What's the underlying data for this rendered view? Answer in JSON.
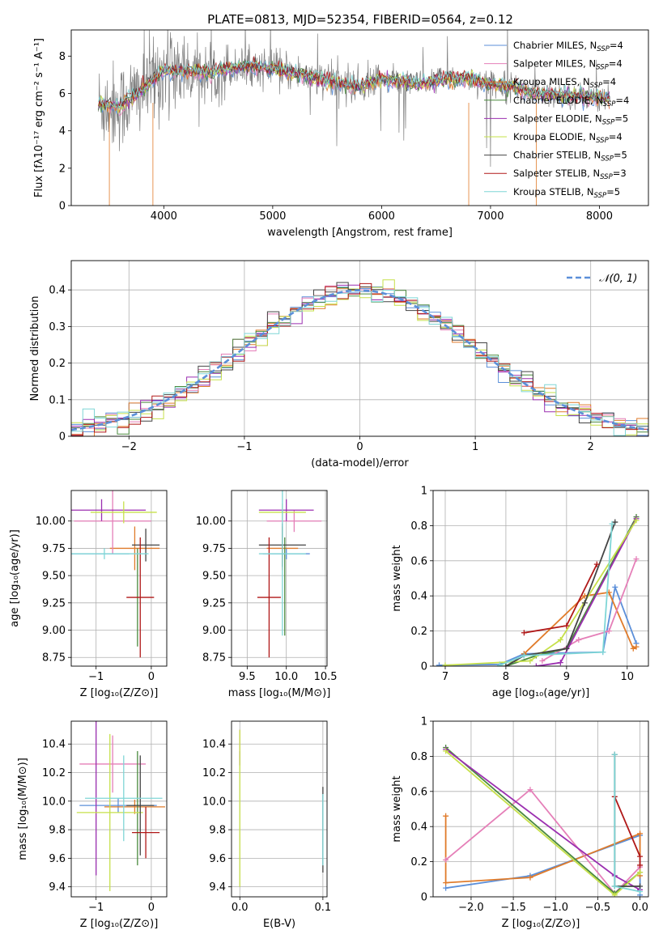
{
  "figure_title": "PLATE=0813, MJD=52354, FIBERID=0564, z=0.12",
  "colors": {
    "cornflower": "#5b8fd9",
    "orange": "#e07b2a",
    "pink": "#e57fb8",
    "green": "#4a8a3e",
    "purple": "#9b2fb0",
    "lime": "#c6e04a",
    "darkgray": "#444444",
    "red": "#b01818",
    "cyan": "#7fd6d6",
    "gray": "#808080",
    "grid": "#b0b0b0"
  },
  "chart_data": [
    {
      "id": "spectrum",
      "type": "line",
      "xlabel": "wavelength [Angstrom, rest frame]",
      "ylabel": "Flux [fλ10⁻¹⁷ erg cm⁻² s⁻¹ A⁻¹]",
      "xlim": [
        3150,
        8450
      ],
      "ylim": [
        0,
        9.4
      ],
      "xticks": [
        4000,
        5000,
        6000,
        7000,
        8000
      ],
      "yticks": [
        0,
        2,
        4,
        6,
        8
      ],
      "grid": false,
      "legend_position": "top-right",
      "series": [
        {
          "name": "Chabrier MILES, N_SSP=4",
          "color": "#5b8fd9"
        },
        {
          "name": "Salpeter MILES, N_SSP=4",
          "color": "#e57fb8"
        },
        {
          "name": "Kroupa MILES, N_SSP=4",
          "color": "#e07b2a"
        },
        {
          "name": "Chabrier ELODIE, N_SSP=4",
          "color": "#4a8a3e"
        },
        {
          "name": "Salpeter ELODIE, N_SSP=5",
          "color": "#9b2fb0"
        },
        {
          "name": "Kroupa ELODIE, N_SSP=4",
          "color": "#c6e04a"
        },
        {
          "name": "Chabrier STELIB, N_SSP=5",
          "color": "#444444"
        },
        {
          "name": "Salpeter STELIB, N_SSP=3",
          "color": "#b01818"
        },
        {
          "name": "Kroupa STELIB, N_SSP=5",
          "color": "#7fd6d6"
        }
      ],
      "model_knots": {
        "x": [
          3400,
          3600,
          3800,
          4000,
          4200,
          4400,
          4600,
          4800,
          5000,
          5200,
          5400,
          5600,
          5800,
          6000,
          6200,
          6400,
          6600,
          6800,
          7000,
          7200,
          7400,
          7600,
          7800,
          8000,
          8100
        ],
        "y": [
          5.4,
          5.3,
          6.2,
          7.2,
          7.2,
          7.1,
          7.3,
          7.5,
          7.3,
          7.1,
          6.8,
          6.5,
          6.4,
          6.8,
          6.6,
          6.5,
          6.8,
          6.8,
          6.5,
          6.4,
          6.0,
          5.9,
          5.9,
          5.8,
          5.7
        ]
      }
    },
    {
      "id": "residuals",
      "type": "line",
      "xlabel": "(data-model)/error",
      "ylabel": "Normed distribution",
      "xlim": [
        -2.5,
        2.5
      ],
      "ylim": [
        0,
        0.48
      ],
      "xticks": [
        -2,
        -1,
        0,
        1,
        2
      ],
      "yticks": [
        0.0,
        0.1,
        0.2,
        0.3,
        0.4
      ],
      "grid": true,
      "legend_position": "top-right",
      "legend": "𝒩(0, 1)",
      "gaussian": {
        "mean": 0,
        "sigma": 1
      }
    },
    {
      "id": "age-vs-Z",
      "type": "scatter",
      "xlabel": "Z [log₁₀(Z/Z⊙)]",
      "ylabel": "age  [log₁₀(age/yr)]",
      "xlim": [
        -1.45,
        0.28
      ],
      "ylim": [
        8.67,
        10.28
      ],
      "xticks": [
        -1,
        0
      ],
      "xticklabels": [
        "−1",
        "0"
      ],
      "yticks": [
        8.75,
        9.0,
        9.25,
        9.5,
        9.75,
        10.0
      ],
      "yticklabels": [
        "8.75",
        "9.00",
        "9.25",
        "9.50",
        "9.75",
        "10.00"
      ],
      "grid": true,
      "points": [
        {
          "color": "#5b8fd9",
          "x": -1.0,
          "y": 9.7,
          "xerr": 0.6,
          "yerr": 0
        },
        {
          "color": "#e07b2a",
          "x": -0.3,
          "y": 9.75,
          "xerr": 0.45,
          "yerr": 0.2
        },
        {
          "color": "#e57fb8",
          "x": -0.7,
          "y": 10.0,
          "xerr": 0.7,
          "yerr": 0.3
        },
        {
          "color": "#4a8a3e",
          "x": -0.25,
          "y": 9.3,
          "xerr": 0.0,
          "yerr": 0.45
        },
        {
          "color": "#9b2fb0",
          "x": -0.9,
          "y": 10.1,
          "xerr": 0.8,
          "yerr": 0.1
        },
        {
          "color": "#c6e04a",
          "x": -0.5,
          "y": 10.08,
          "xerr": 0.6,
          "yerr": 0.1
        },
        {
          "color": "#444444",
          "x": -0.1,
          "y": 9.78,
          "xerr": 0.25,
          "yerr": 0.15
        },
        {
          "color": "#b01818",
          "x": -0.2,
          "y": 9.3,
          "xerr": 0.25,
          "yerr": 0.55
        },
        {
          "color": "#7fd6d6",
          "x": -0.85,
          "y": 9.7,
          "xerr": 0.8,
          "yerr": 0.05
        }
      ]
    },
    {
      "id": "age-vs-mass",
      "type": "scatter",
      "xlabel": "mass [log₁₀(M/M⊙)]",
      "xlim": [
        9.3,
        10.52
      ],
      "ylim": [
        8.67,
        10.28
      ],
      "xticks": [
        9.5,
        10.0,
        10.5
      ],
      "xticklabels": [
        "9.5",
        "10.0",
        "10.5"
      ],
      "yticks": [
        8.75,
        9.0,
        9.25,
        9.5,
        9.75,
        10.0
      ],
      "yticklabels": [
        "8.75",
        "9.00",
        "9.25",
        "9.50",
        "9.75",
        "10.00"
      ],
      "grid": true,
      "points": [
        {
          "color": "#5b8fd9",
          "x": 10.0,
          "y": 9.7,
          "xerr": 0.3,
          "yerr": 0.05
        },
        {
          "color": "#e07b2a",
          "x": 9.95,
          "y": 9.75,
          "xerr": 0.2,
          "yerr": 0.2
        },
        {
          "color": "#e57fb8",
          "x": 10.1,
          "y": 10.0,
          "xerr": 0.35,
          "yerr": 0.1
        },
        {
          "color": "#4a8a3e",
          "x": 9.98,
          "y": 9.4,
          "xerr": 0.0,
          "yerr": 0.45
        },
        {
          "color": "#9b2fb0",
          "x": 10.0,
          "y": 10.1,
          "xerr": 0.35,
          "yerr": 0.1
        },
        {
          "color": "#c6e04a",
          "x": 9.95,
          "y": 10.08,
          "xerr": 0.3,
          "yerr": 0.08
        },
        {
          "color": "#444444",
          "x": 9.95,
          "y": 9.78,
          "xerr": 0.3,
          "yerr": 0.2
        },
        {
          "color": "#b01818",
          "x": 9.78,
          "y": 9.3,
          "xerr": 0.15,
          "yerr": 0.55
        },
        {
          "color": "#7fd6d6",
          "x": 9.95,
          "y": 9.7,
          "xerr": 0.3,
          "yerr": 0.75
        }
      ]
    },
    {
      "id": "weight-vs-age",
      "type": "line",
      "xlabel": "age  [log₁₀(age/yr)]",
      "ylabel": "mass weight",
      "xlim": [
        6.8,
        10.35
      ],
      "ylim": [
        0,
        1.0
      ],
      "xticks": [
        7,
        8,
        9,
        10
      ],
      "yticks": [
        0.0,
        0.2,
        0.4,
        0.6,
        0.8,
        1.0
      ],
      "grid": true,
      "series": [
        {
          "color": "#5b8fd9",
          "x": [
            6.9,
            7.9,
            8.3,
            9.6,
            9.8,
            10.15
          ],
          "y": [
            0.005,
            0.01,
            0.07,
            0.08,
            0.45,
            0.13
          ]
        },
        {
          "color": "#e07b2a",
          "x": [
            8.3,
            9.3,
            9.7,
            10.1,
            10.15
          ],
          "y": [
            0.07,
            0.4,
            0.42,
            0.1,
            0.11
          ]
        },
        {
          "color": "#e57fb8",
          "x": [
            8.6,
            9.2,
            9.7,
            10.15
          ],
          "y": [
            0.03,
            0.15,
            0.2,
            0.61
          ]
        },
        {
          "color": "#4a8a3e",
          "x": [
            8.0,
            8.5,
            9.0,
            10.15
          ],
          "y": [
            0.0,
            0.06,
            0.1,
            0.85
          ]
        },
        {
          "color": "#9b2fb0",
          "x": [
            8.5,
            8.9,
            10.15
          ],
          "y": [
            0.0,
            0.02,
            0.84
          ]
        },
        {
          "color": "#c6e04a",
          "x": [
            7.0,
            8.4,
            8.9,
            10.15
          ],
          "y": [
            0.005,
            0.03,
            0.15,
            0.83
          ]
        },
        {
          "color": "#444444",
          "x": [
            8.0,
            8.3,
            9.0,
            9.3,
            9.8
          ],
          "y": [
            0.0,
            0.06,
            0.1,
            0.36,
            0.82
          ]
        },
        {
          "color": "#b01818",
          "x": [
            8.3,
            9.0,
            9.5
          ],
          "y": [
            0.19,
            0.23,
            0.58
          ]
        },
        {
          "color": "#7fd6d6",
          "x": [
            7.9,
            8.3,
            9.6,
            9.75
          ],
          "y": [
            0.005,
            0.06,
            0.08,
            0.81
          ]
        }
      ]
    },
    {
      "id": "mass-vs-Z",
      "type": "scatter",
      "xlabel": "Z [log₁₀(Z/Z⊙)]",
      "ylabel": "mass [log₁₀(M/M⊙)]",
      "xlim": [
        -1.45,
        0.28
      ],
      "ylim": [
        9.33,
        10.56
      ],
      "xticks": [
        -1,
        0
      ],
      "xticklabels": [
        "−1",
        "0"
      ],
      "yticks": [
        9.4,
        9.6,
        9.8,
        10.0,
        10.2,
        10.4
      ],
      "yticklabels": [
        "9.4",
        "9.6",
        "9.8",
        "10.0",
        "10.2",
        "10.4"
      ],
      "grid": true,
      "points": [
        {
          "color": "#5b8fd9",
          "x": -0.6,
          "y": 9.97,
          "xerr": 0.7,
          "yerr": 0.05
        },
        {
          "color": "#e07b2a",
          "x": -0.3,
          "y": 9.96,
          "xerr": 0.55,
          "yerr": 0.05
        },
        {
          "color": "#e57fb8",
          "x": -0.7,
          "y": 10.26,
          "xerr": 0.6,
          "yerr": 0.2
        },
        {
          "color": "#4a8a3e",
          "x": -0.25,
          "y": 9.95,
          "xerr": 0.0,
          "yerr": 0.4
        },
        {
          "color": "#9b2fb0",
          "x": -1.0,
          "y": 10.03,
          "xerr": 0.0,
          "yerr": 0.55
        },
        {
          "color": "#c6e04a",
          "x": -0.75,
          "y": 9.92,
          "xerr": 0.6,
          "yerr": 0.55
        },
        {
          "color": "#444444",
          "x": -0.2,
          "y": 9.97,
          "xerr": 0.25,
          "yerr": 0.35
        },
        {
          "color": "#b01818",
          "x": -0.1,
          "y": 9.78,
          "xerr": 0.25,
          "yerr": 0.18
        },
        {
          "color": "#7fd6d6",
          "x": -0.5,
          "y": 10.02,
          "xerr": 0.7,
          "yerr": 0.3
        }
      ]
    },
    {
      "id": "mass-vs-EBV",
      "type": "scatter",
      "xlabel": "E(B-V)",
      "xlim": [
        -0.01,
        0.105
      ],
      "ylim": [
        9.33,
        10.56
      ],
      "xticks": [
        0.0,
        0.1
      ],
      "xticklabels": [
        "0.0",
        "0.1"
      ],
      "yticks": [
        9.4,
        9.6,
        9.8,
        10.0,
        10.2,
        10.4
      ],
      "yticklabels": [
        "9.4",
        "9.6",
        "9.8",
        "10.0",
        "10.2",
        "10.4"
      ],
      "grid": true,
      "points": [
        {
          "color": "#e57fb8",
          "x": 0.0,
          "y": 10.4,
          "xerr": 0,
          "yerr": 0.1
        },
        {
          "color": "#9b2fb0",
          "x": 0.0,
          "y": 10.3,
          "xerr": 0,
          "yerr": 0.05
        },
        {
          "color": "#c6e04a",
          "x": 0.0,
          "y": 9.95,
          "xerr": 0,
          "yerr": 0.55
        },
        {
          "color": "#444444",
          "x": 0.1,
          "y": 9.8,
          "xerr": 0,
          "yerr": 0.3
        },
        {
          "color": "#7fd6d6",
          "x": 0.1,
          "y": 9.8,
          "xerr": 0,
          "yerr": 0.25
        }
      ]
    },
    {
      "id": "weight-vs-Z",
      "type": "line",
      "xlabel": "Z [log₁₀(Z/Z⊙)]",
      "ylabel": "mass weight",
      "xlim": [
        -2.45,
        0.1
      ],
      "ylim": [
        0,
        1.0
      ],
      "xticks": [
        -2.0,
        -1.5,
        -1.0,
        -0.5,
        0.0
      ],
      "xticklabels": [
        "−2.0",
        "−1.5",
        "−1.0",
        "−0.5",
        "0.0"
      ],
      "yticks": [
        0.0,
        0.2,
        0.4,
        0.6,
        0.8,
        1.0
      ],
      "grid": true,
      "series": [
        {
          "color": "#5b8fd9",
          "x": [
            -2.3,
            -1.3,
            0.0,
            0.0
          ],
          "y": [
            0.05,
            0.12,
            0.35,
            0.01
          ]
        },
        {
          "color": "#e07b2a",
          "x": [
            -2.3,
            -2.3,
            -1.3,
            0.0,
            0.0
          ],
          "y": [
            0.46,
            0.08,
            0.11,
            0.36,
            0.12
          ]
        },
        {
          "color": "#e57fb8",
          "x": [
            -2.3,
            -1.3,
            -0.3,
            0.0
          ],
          "y": [
            0.21,
            0.61,
            0.02,
            0.17
          ]
        },
        {
          "color": "#4a8a3e",
          "x": [
            -2.3,
            -0.3,
            0.0
          ],
          "y": [
            0.85,
            0.02,
            0.14
          ]
        },
        {
          "color": "#9b2fb0",
          "x": [
            -2.3,
            -0.3,
            0.0
          ],
          "y": [
            0.84,
            0.12,
            0.04
          ]
        },
        {
          "color": "#c6e04a",
          "x": [
            -2.3,
            -0.3,
            0.0
          ],
          "y": [
            0.83,
            0.01,
            0.14
          ]
        },
        {
          "color": "#444444",
          "x": [
            -0.3,
            -0.3,
            0.0
          ],
          "y": [
            0.81,
            0.06,
            0.06
          ]
        },
        {
          "color": "#b01818",
          "x": [
            -0.3,
            0.0,
            0.0
          ],
          "y": [
            0.57,
            0.23,
            0.18
          ]
        },
        {
          "color": "#7fd6d6",
          "x": [
            -0.3,
            -0.3,
            0.0
          ],
          "y": [
            0.81,
            0.06,
            0.03
          ]
        }
      ]
    }
  ]
}
